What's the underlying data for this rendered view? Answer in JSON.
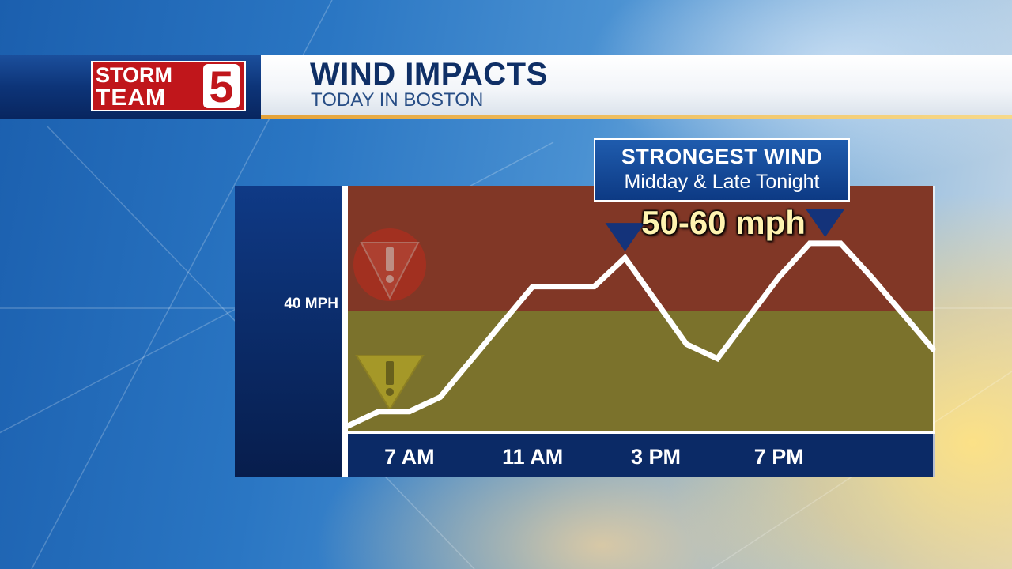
{
  "header": {
    "logo_line1": "STORM",
    "logo_line2": "TEAM",
    "logo_number": "5",
    "title": "WIND IMPACTS",
    "subtitle": "TODAY IN BOSTON"
  },
  "callout": {
    "title": "STRONGEST WIND",
    "subtitle": "Midday & Late Tonight",
    "speed": "50-60 mph"
  },
  "colors": {
    "high_zone": "#813726",
    "low_zone": "#7b722c",
    "line": "#ffffff",
    "axis_band": "#0b2a66",
    "marker": "#14337a"
  },
  "chart_data": {
    "type": "line",
    "title": "WIND IMPACTS",
    "subtitle": "TODAY IN BOSTON",
    "xlabel": "",
    "ylabel": "",
    "x_ticks": [
      {
        "label": "7 AM",
        "x": 7
      },
      {
        "label": "11 AM",
        "x": 11
      },
      {
        "label": "3 PM",
        "x": 15
      },
      {
        "label": "7 PM",
        "x": 19
      }
    ],
    "y_ticks": [
      {
        "label": "40 MPH",
        "y": 40
      }
    ],
    "xlim": [
      5,
      24
    ],
    "ylim": [
      15,
      66
    ],
    "grid": false,
    "threshold_zones": [
      {
        "from": 15,
        "to": 40,
        "color": "#7b722c",
        "icon": "caution-warning-icon"
      },
      {
        "from": 40,
        "to": 66,
        "color": "#813726",
        "icon": "danger-warning-icon"
      }
    ],
    "series": [
      {
        "values": [
          {
            "x": 5.0,
            "y": 16
          },
          {
            "x": 6.0,
            "y": 19
          },
          {
            "x": 7.0,
            "y": 19
          },
          {
            "x": 8.0,
            "y": 22
          },
          {
            "x": 11.0,
            "y": 45
          },
          {
            "x": 13.0,
            "y": 45
          },
          {
            "x": 14.0,
            "y": 51
          },
          {
            "x": 16.0,
            "y": 33
          },
          {
            "x": 17.0,
            "y": 30
          },
          {
            "x": 19.0,
            "y": 47
          },
          {
            "x": 20.0,
            "y": 54
          },
          {
            "x": 21.0,
            "y": 54
          },
          {
            "x": 22.0,
            "y": 47
          },
          {
            "x": 24.0,
            "y": 32
          }
        ]
      }
    ],
    "peak_markers": [
      {
        "x": 14.0
      },
      {
        "x": 20.5
      }
    ],
    "annotation": "50-60 mph"
  }
}
